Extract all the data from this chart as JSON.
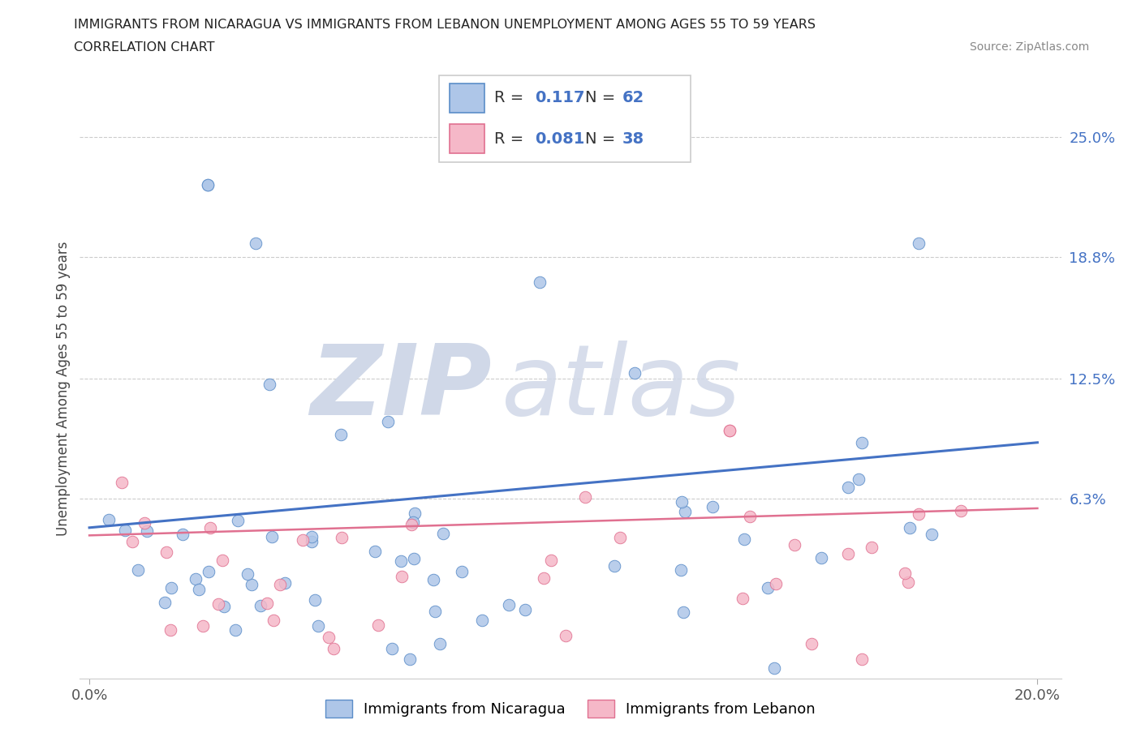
{
  "title_line1": "IMMIGRANTS FROM NICARAGUA VS IMMIGRANTS FROM LEBANON UNEMPLOYMENT AMONG AGES 55 TO 59 YEARS",
  "title_line2": "CORRELATION CHART",
  "source": "Source: ZipAtlas.com",
  "ylabel": "Unemployment Among Ages 55 to 59 years",
  "xlim": [
    -0.002,
    0.205
  ],
  "ylim": [
    -0.03,
    0.27
  ],
  "ytick_vals": [
    0.063,
    0.125,
    0.188,
    0.25
  ],
  "ytick_labels": [
    "6.3%",
    "12.5%",
    "18.8%",
    "25.0%"
  ],
  "xtick_vals": [
    0.0,
    0.2
  ],
  "xtick_labels": [
    "0.0%",
    "20.0%"
  ],
  "legend_label1": "Immigrants from Nicaragua",
  "legend_label2": "Immigrants from Lebanon",
  "R1": 0.117,
  "N1": 62,
  "R2": 0.081,
  "N2": 38,
  "color1": "#aec6e8",
  "color2": "#f5b8c8",
  "edge_color1": "#5b8dc8",
  "edge_color2": "#e07090",
  "line_color1": "#4472c4",
  "line_color2": "#e07090",
  "grid_color": "#cccccc",
  "watermark_zip_color": "#d0d8e8",
  "watermark_atlas_color": "#d0d8e8",
  "title_color": "#222222",
  "source_color": "#888888",
  "tick_color": "#555555",
  "ylabel_color": "#444444",
  "stats_border_color": "#cccccc",
  "line1_intercept": 0.048,
  "line1_slope": 0.22,
  "line2_intercept": 0.044,
  "line2_slope": 0.07
}
